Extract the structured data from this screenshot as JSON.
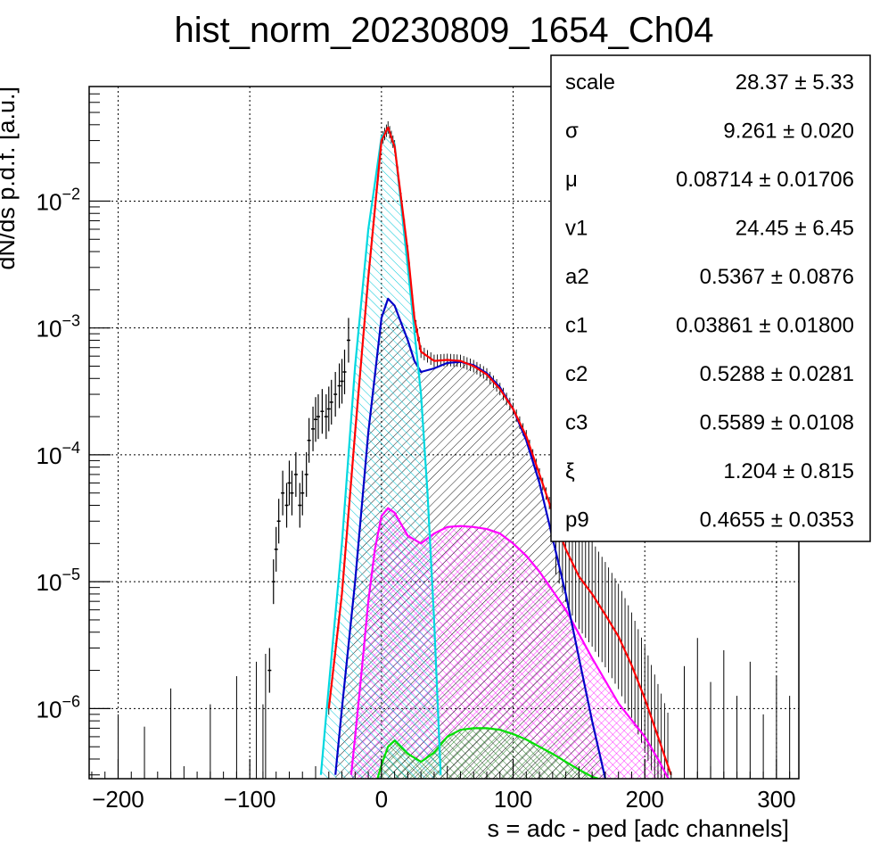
{
  "chart_data": {
    "type": "line",
    "title": "hist_norm_20230809_1654_Ch04",
    "xlabel": "s = adc - ped [adc channels]",
    "ylabel": "dN/ds p.d.f. [a.u.]",
    "xlim": [
      -222,
      317
    ],
    "ylim": [
      2.8e-07,
      0.08
    ],
    "yscale": "log",
    "grid": true,
    "x_ticks": [
      -200,
      -100,
      0,
      100,
      200,
      300
    ],
    "x_tick_labels": [
      "−200",
      "−100",
      "0",
      "100",
      "200",
      "300"
    ],
    "y_ticks": [
      {
        "base": "10",
        "exp": "−6",
        "value": 1e-06
      },
      {
        "base": "10",
        "exp": "−5",
        "value": 1e-05
      },
      {
        "base": "10",
        "exp": "−4",
        "value": 0.0001
      },
      {
        "base": "10",
        "exp": "−3",
        "value": 0.001
      },
      {
        "base": "10",
        "exp": "−2",
        "value": 0.01
      }
    ],
    "series": [
      {
        "role": "total-fit",
        "color": "#ff0000",
        "hatch": "none",
        "x": [
          -40,
          -30,
          -20,
          -10,
          0,
          5,
          10,
          20,
          25,
          30,
          40,
          50,
          60,
          70,
          80,
          90,
          100,
          110,
          120,
          130,
          140,
          150,
          160,
          170,
          180,
          190,
          200,
          210,
          220
        ],
        "y": [
          1e-06,
          8e-06,
          0.00015,
          0.0025,
          0.03,
          0.038,
          0.027,
          0.004,
          0.0012,
          0.00065,
          0.00055,
          0.00056,
          0.00055,
          0.0005,
          0.00043,
          0.00033,
          0.00023,
          0.00014,
          7e-05,
          3.5e-05,
          1.8e-05,
          1.1e-05,
          8e-06,
          5.5e-06,
          3.7e-06,
          2.2e-06,
          1.2e-06,
          6e-07,
          3e-07
        ]
      },
      {
        "role": "pedestal-component",
        "color": "#00d8e0",
        "hatch": "cyan",
        "x": [
          -46,
          -40,
          -30,
          -20,
          -10,
          0,
          5,
          10,
          20,
          30,
          35,
          40,
          45
        ],
        "y": [
          3e-07,
          1.5e-06,
          2e-05,
          0.0005,
          0.006,
          0.032,
          0.037,
          0.028,
          0.003,
          0.0003,
          5e-05,
          5e-06,
          3e-07
        ]
      },
      {
        "role": "single-pe-component",
        "color": "#0000c8",
        "hatch": "black",
        "x": [
          -35,
          -30,
          -20,
          -10,
          0,
          5,
          10,
          20,
          25,
          30,
          40,
          50,
          60,
          70,
          80,
          90,
          100,
          110,
          120,
          130,
          140,
          150,
          160,
          170
        ],
        "y": [
          3e-07,
          1e-06,
          1e-05,
          0.00015,
          0.0012,
          0.0017,
          0.0015,
          0.0008,
          0.00055,
          0.00045,
          0.00048,
          0.00053,
          0.00054,
          0.00051,
          0.00044,
          0.00034,
          0.00023,
          0.00013,
          6e-05,
          2.2e-05,
          8e-06,
          2.5e-06,
          8e-07,
          2.8e-07
        ]
      },
      {
        "role": "double-pe-component",
        "color": "#ff00ff",
        "hatch": "magenta",
        "x": [
          -23,
          -20,
          -15,
          -10,
          -5,
          0,
          5,
          10,
          20,
          30,
          40,
          50,
          60,
          70,
          80,
          90,
          100,
          110,
          120,
          140,
          160,
          180,
          200,
          210,
          218
        ],
        "y": [
          3e-07,
          6e-07,
          2e-06,
          7e-06,
          1.8e-05,
          3.3e-05,
          3.8e-05,
          3.5e-05,
          2.3e-05,
          2e-05,
          2.4e-05,
          2.7e-05,
          2.75e-05,
          2.7e-05,
          2.6e-05,
          2.4e-05,
          2e-05,
          1.6e-05,
          1.2e-05,
          6e-06,
          2.5e-06,
          1.1e-06,
          6e-07,
          4e-07,
          2.8e-07
        ]
      },
      {
        "role": "triple-pe-component",
        "color": "#00e000",
        "hatch": "green",
        "x": [
          -3,
          0,
          5,
          10,
          20,
          30,
          40,
          50,
          60,
          70,
          80,
          90,
          100,
          110,
          120,
          130,
          140,
          150,
          160,
          165
        ],
        "y": [
          2.8e-07,
          3.6e-07,
          5e-07,
          5.6e-07,
          4.4e-07,
          3.8e-07,
          4.5e-07,
          6e-07,
          6.8e-07,
          7e-07,
          7e-07,
          6.8e-07,
          6.3e-07,
          5.7e-07,
          5e-07,
          4.4e-07,
          3.8e-07,
          3.3e-07,
          2.9e-07,
          2.8e-07
        ]
      },
      {
        "role": "data-histogram",
        "color": "#000000",
        "hatch": "none",
        "x": [
          -85,
          -82,
          -80,
          -78,
          -75,
          -72,
          -70,
          -68,
          -65,
          -62,
          -60,
          -57,
          -55,
          -52,
          -50,
          -48,
          -45,
          -42,
          -40,
          -38,
          -35,
          -32,
          -30,
          -28,
          -25
        ],
        "y": [
          2e-06,
          1e-05,
          1.8e-05,
          3e-05,
          5e-05,
          4e-05,
          6e-05,
          5e-05,
          7e-05,
          4e-05,
          5e-05,
          7e-05,
          0.00013,
          0.00016,
          0.00019,
          0.0002,
          0.00022,
          0.0002,
          0.00023,
          0.00026,
          0.0003,
          0.00035,
          0.00038,
          0.00045,
          0.0008
        ]
      }
    ],
    "tail_points": {
      "x": [
        -222,
        -200,
        -180,
        -160,
        -130,
        -110,
        -95,
        -90,
        -88,
        230,
        240,
        250,
        260,
        270,
        280,
        290,
        300,
        310
      ],
      "y": [
        1e-06,
        5e-07,
        4e-07,
        8e-07,
        6e-07,
        1e-06,
        1.3e-06,
        6e-07,
        1.5e-06,
        1.2e-06,
        2e-06,
        9e-07,
        1.6e-06,
        7e-07,
        1.3e-06,
        5e-07,
        1e-06,
        7e-07
      ]
    }
  },
  "stats_box": [
    {
      "name": "scale",
      "value": "28.37 ± 5.33"
    },
    {
      "name": "σ",
      "value": "9.261 ± 0.020"
    },
    {
      "name": "μ",
      "value": "0.08714 ± 0.01706"
    },
    {
      "name": "v1",
      "value": "24.45 ± 6.45"
    },
    {
      "name": "a2",
      "value": "0.5367 ± 0.0876"
    },
    {
      "name": "c1",
      "value": "0.03861 ± 0.01800"
    },
    {
      "name": "c2",
      "value": "0.5288 ± 0.0281"
    },
    {
      "name": "c3",
      "value": "0.5589 ± 0.0108"
    },
    {
      "name": "ξ",
      "value": "1.204 ± 0.815"
    },
    {
      "name": "p9",
      "value": "0.4655 ± 0.0353"
    }
  ]
}
